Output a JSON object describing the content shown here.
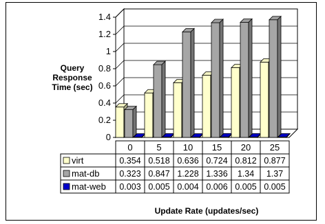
{
  "chart_data": {
    "type": "bar",
    "title": "",
    "xlabel": "Update Rate (updates/sec)",
    "ylabel": "Query\nResponse\nTime (sec)",
    "categories": [
      "0",
      "5",
      "10",
      "15",
      "20",
      "25"
    ],
    "ylim": [
      0,
      1.4
    ],
    "yticks": [
      "0",
      "0.2",
      "0.4",
      "0.6",
      "0.8",
      "1",
      "1.2",
      "1.4"
    ],
    "series": [
      {
        "name": "virt",
        "values": [
          "0.354",
          "0.518",
          "0.636",
          "0.724",
          "0.812",
          "0.877"
        ],
        "color": "#ffffcc"
      },
      {
        "name": "mat-db",
        "values": [
          "0.323",
          "0.847",
          "1.228",
          "1.336",
          "1.34",
          "1.37"
        ],
        "color": "#a6a6a6"
      },
      {
        "name": "mat-web",
        "values": [
          "0.003",
          "0.005",
          "0.004",
          "0.006",
          "0.005",
          "0.005"
        ],
        "color": "#0000cc"
      }
    ],
    "grid": true,
    "legend": "data-table-left"
  }
}
